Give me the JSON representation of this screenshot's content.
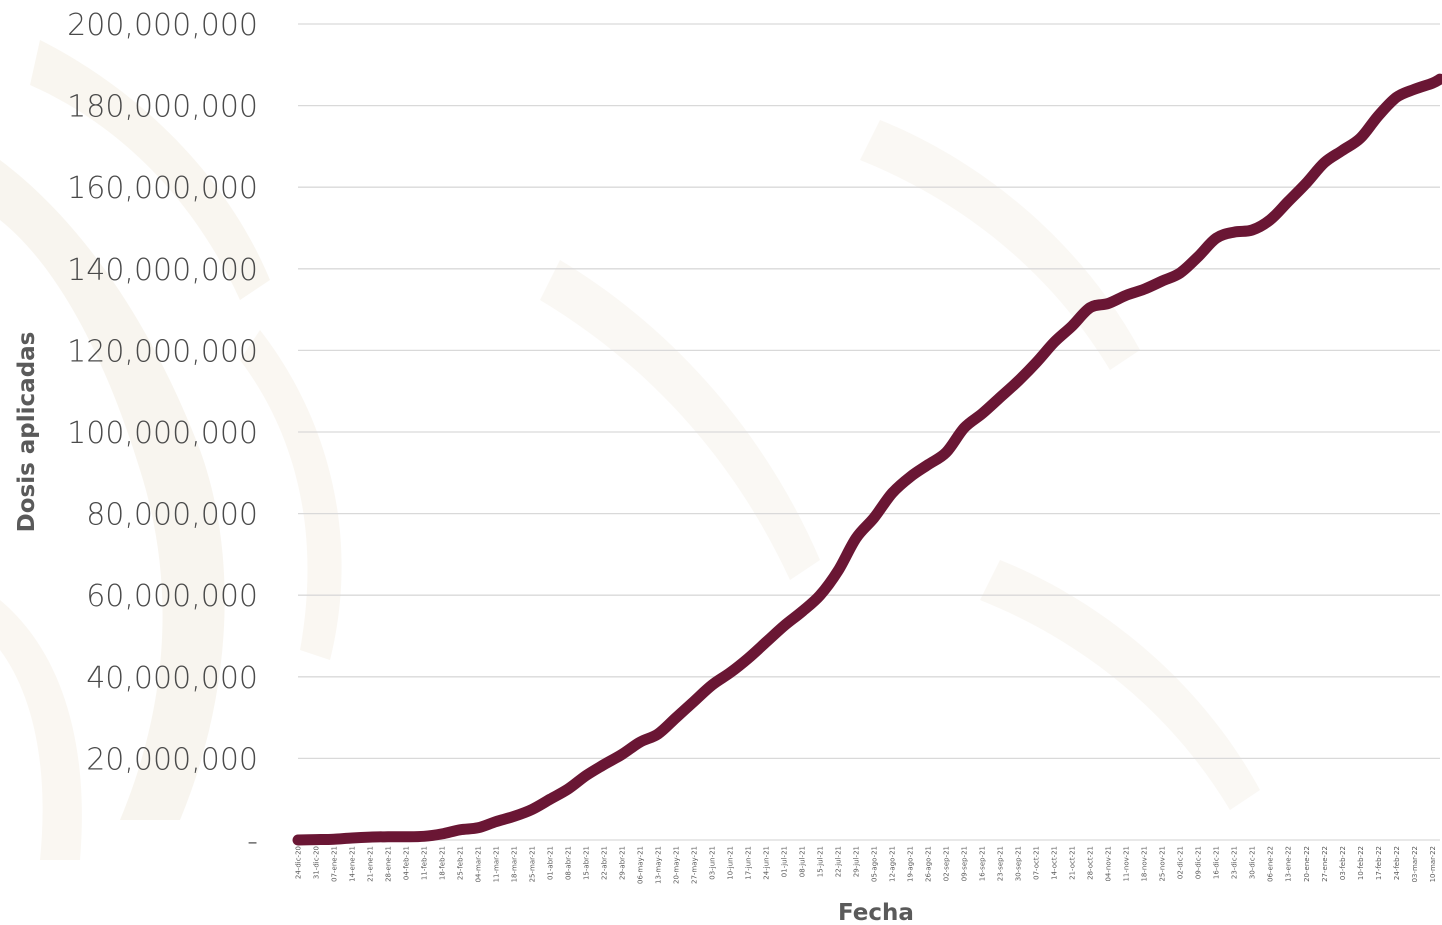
{
  "colors": {
    "line": "#6a1634",
    "grid": "#d9d9d9",
    "text": "#4a4a4a",
    "watermark": "#f3ede2"
  },
  "chart_data": {
    "type": "line",
    "xlabel": "Fecha",
    "ylabel": "Dosis aplicadas",
    "ylim": [
      0,
      200000000
    ],
    "y_ticks": [
      0,
      20000000,
      40000000,
      60000000,
      80000000,
      100000000,
      120000000,
      140000000,
      160000000,
      180000000,
      200000000
    ],
    "y_tick_labels": [
      "-",
      "20,000,000",
      "40,000,000",
      "60,000,000",
      "80,000,000",
      "100,000,000",
      "120,000,000",
      "140,000,000",
      "160,000,000",
      "180,000,000",
      "200,000,000"
    ],
    "grid": "horizontal",
    "legend": "none",
    "x_range": [
      "24-dic-20",
      "13-mar-22"
    ],
    "x_tick_labels": [
      "24-dic-20",
      "31-dic-20",
      "07-ene-21",
      "14-ene-21",
      "21-ene-21",
      "28-ene-21",
      "04-feb-21",
      "11-feb-21",
      "18-feb-21",
      "25-feb-21",
      "04-mar-21",
      "11-mar-21",
      "18-mar-21",
      "25-mar-21",
      "01-abr-21",
      "08-abr-21",
      "15-abr-21",
      "22-abr-21",
      "29-abr-21",
      "06-may-21",
      "13-may-21",
      "20-may-21",
      "27-may-21",
      "03-jun-21",
      "10-jun-21",
      "17-jun-21",
      "24-jun-21",
      "01-jul-21",
      "08-jul-21",
      "15-jul-21",
      "22-jul-21",
      "29-jul-21",
      "05-ago-21",
      "12-ago-21",
      "19-ago-21",
      "26-ago-21",
      "02-sep-21",
      "09-sep-21",
      "16-sep-21",
      "23-sep-21",
      "30-sep-21",
      "07-oct-21",
      "14-oct-21",
      "21-oct-21",
      "28-oct-21",
      "04-nov-21",
      "11-nov-21",
      "18-nov-21",
      "25-nov-21",
      "02-dic-21",
      "09-dic-21",
      "16-dic-21",
      "23-dic-21",
      "30-dic-21",
      "06-ene-22",
      "13-ene-22",
      "20-ene-22",
      "27-ene-22",
      "03-feb-22",
      "10-feb-22",
      "17-feb-22",
      "24-feb-22",
      "03-mar-22",
      "10-mar-22"
    ],
    "series": [
      {
        "x": [
          "24-dic-20",
          "31-dic-20",
          "07-ene-21",
          "14-ene-21",
          "21-ene-21",
          "28-ene-21",
          "04-feb-21",
          "11-feb-21",
          "18-feb-21",
          "25-feb-21",
          "04-mar-21",
          "11-mar-21",
          "18-mar-21",
          "25-mar-21",
          "01-abr-21",
          "08-abr-21",
          "15-abr-21",
          "22-abr-21",
          "29-abr-21",
          "06-may-21",
          "13-may-21",
          "20-may-21",
          "27-may-21",
          "03-jun-21",
          "10-jun-21",
          "17-jun-21",
          "24-jun-21",
          "01-jul-21",
          "08-jul-21",
          "15-jul-21",
          "22-jul-21",
          "29-jul-21",
          "05-ago-21",
          "12-ago-21",
          "19-ago-21",
          "26-ago-21",
          "02-sep-21",
          "09-sep-21",
          "16-sep-21",
          "23-sep-21",
          "30-sep-21",
          "07-oct-21",
          "14-oct-21",
          "21-oct-21",
          "28-oct-21",
          "04-nov-21",
          "11-nov-21",
          "18-nov-21",
          "25-nov-21",
          "02-dic-21",
          "09-dic-21",
          "16-dic-21",
          "23-dic-21",
          "30-dic-21",
          "06-ene-22",
          "13-ene-22",
          "20-ene-22",
          "27-ene-22",
          "03-feb-22",
          "10-feb-22",
          "17-feb-22",
          "24-feb-22",
          "03-mar-22",
          "10-mar-22",
          "13-mar-22"
        ],
        "values": [
          0,
          100000,
          200000,
          500000,
          700000,
          800000,
          800000,
          900000,
          1500000,
          2500000,
          3000000,
          4500000,
          5800000,
          7500000,
          10000000,
          12500000,
          15800000,
          18500000,
          21000000,
          24000000,
          26000000,
          30000000,
          34000000,
          38000000,
          41000000,
          44500000,
          48500000,
          52500000,
          56000000,
          60000000,
          66000000,
          74000000,
          79000000,
          85000000,
          89000000,
          92000000,
          95000000,
          101000000,
          104500000,
          108500000,
          112500000,
          117000000,
          122000000,
          126000000,
          130500000,
          131500000,
          133500000,
          135000000,
          137000000,
          139000000,
          143000000,
          147500000,
          149000000,
          149500000,
          152000000,
          156500000,
          161000000,
          166000000,
          169000000,
          172000000,
          177500000,
          182000000,
          184000000,
          185500000,
          186500000
        ]
      }
    ]
  }
}
